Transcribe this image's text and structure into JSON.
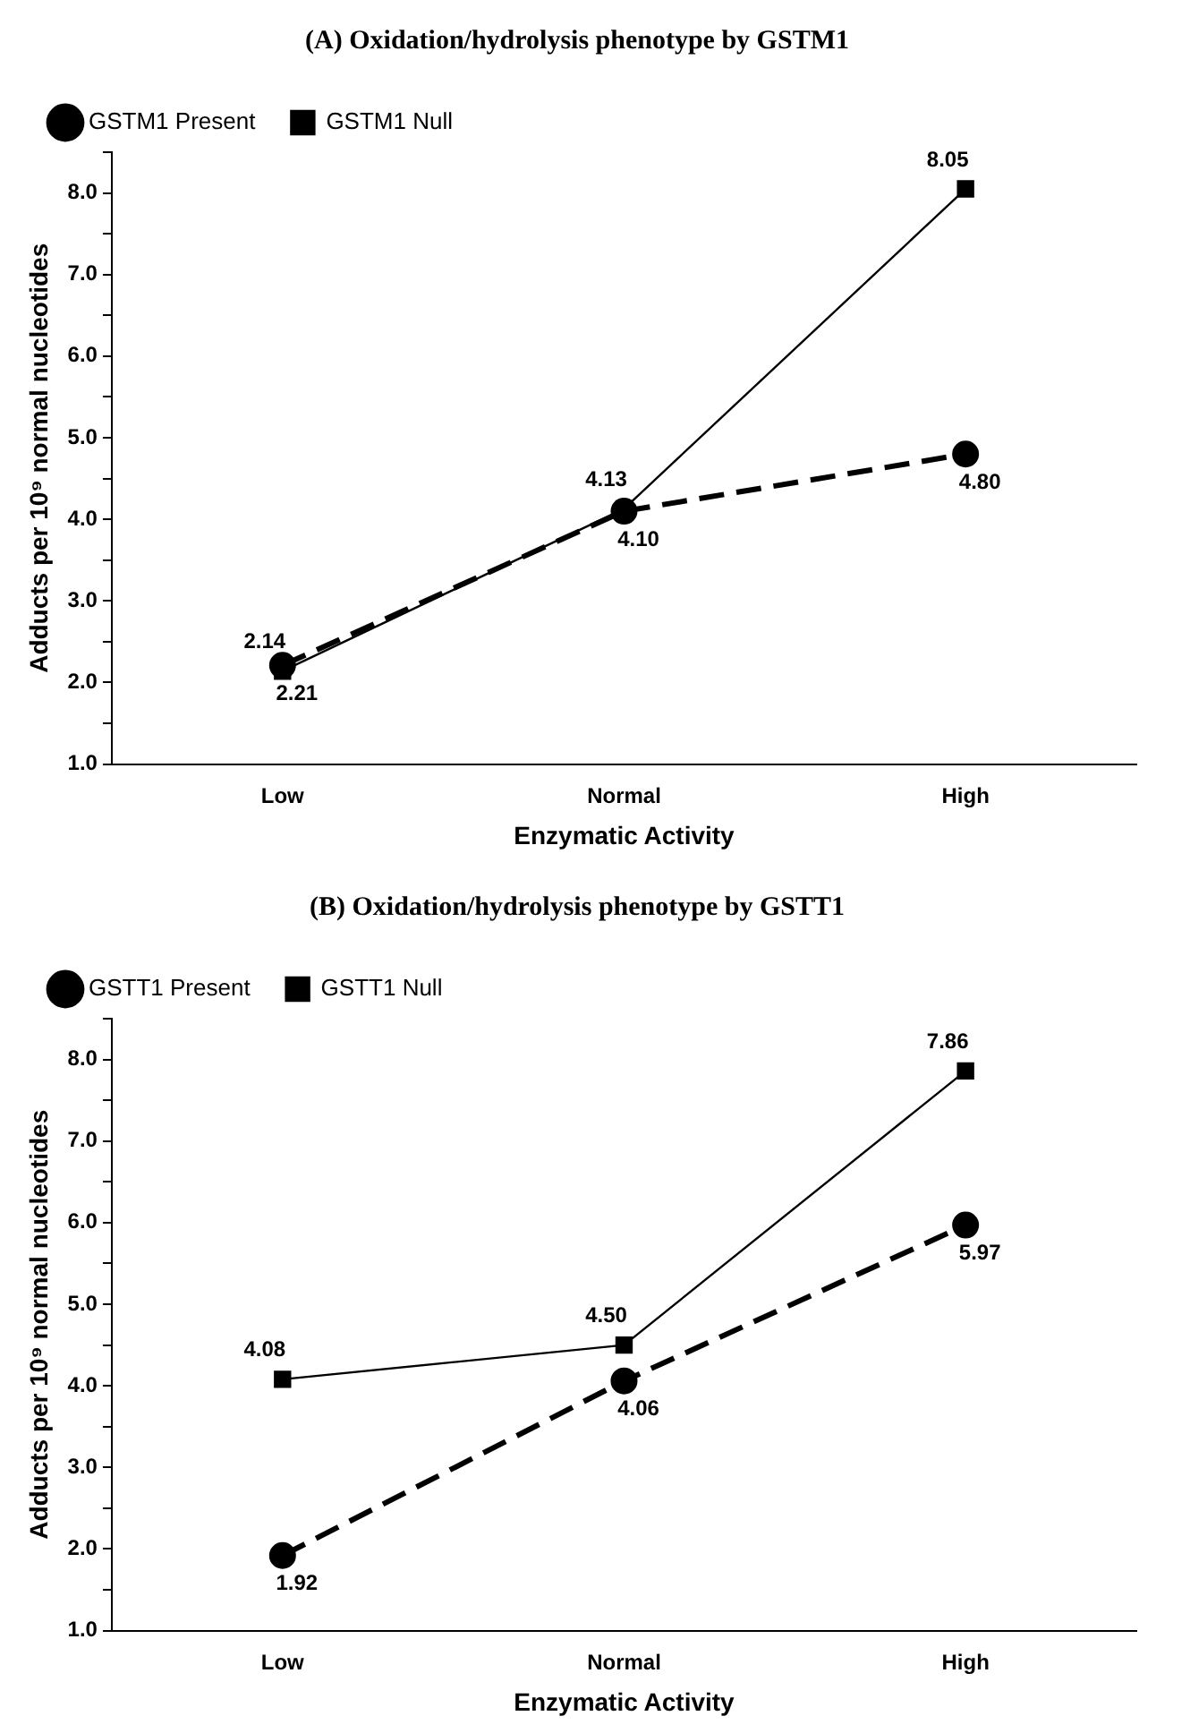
{
  "chart_data": [
    {
      "type": "line",
      "title": "(A) Oxidation/hydrolysis phenotype by GSTM1",
      "xlabel": "Enzymatic Activity",
      "ylabel": "Adducts per 10⁹ normal nucleotides",
      "categories": [
        "Low",
        "Normal",
        "High"
      ],
      "series": [
        {
          "name": "GSTM1 Present",
          "color": "#000000",
          "values": [
            2.21,
            4.1,
            4.8
          ],
          "value_labels": [
            "2.21",
            "4.10",
            "4.80"
          ],
          "marker": "circle",
          "line_style": "dashed"
        },
        {
          "name": "GSTM1 Null",
          "color": "#000000",
          "values": [
            2.14,
            4.13,
            8.05
          ],
          "value_labels": [
            "2.14",
            "4.13",
            "8.05"
          ],
          "marker": "square",
          "line_style": "solid"
        }
      ],
      "ylim": [
        1,
        8.5
      ],
      "yticks": [
        {
          "value": 1,
          "label": "1.0"
        },
        {
          "value": 1.5,
          "label": null
        },
        {
          "value": 2,
          "label": "2.0"
        },
        {
          "value": 2.5,
          "label": null
        },
        {
          "value": 3,
          "label": "3.0"
        },
        {
          "value": 3.5,
          "label": null
        },
        {
          "value": 4,
          "label": "4.0"
        },
        {
          "value": 4.5,
          "label": null
        },
        {
          "value": 5,
          "label": "5.0"
        },
        {
          "value": 5.5,
          "label": null
        },
        {
          "value": 6,
          "label": "6.0"
        },
        {
          "value": 6.5,
          "label": null
        },
        {
          "value": 7,
          "label": "7.0"
        },
        {
          "value": 7.5,
          "label": null
        },
        {
          "value": 8,
          "label": "8.0"
        },
        {
          "value": 8.5,
          "label": null
        }
      ],
      "legend": "top left"
    },
    {
      "type": "line",
      "title": "(B) Oxidation/hydrolysis phenotype by GSTT1",
      "xlabel": "Enzymatic Activity",
      "ylabel": "Adducts per 10⁹ normal nucleotides",
      "categories": [
        "Low",
        "Normal",
        "High"
      ],
      "series": [
        {
          "name": "GSTT1 Present",
          "color": "#000000",
          "values": [
            1.92,
            4.06,
            5.97
          ],
          "value_labels": [
            "1.92",
            "4.06",
            "5.97"
          ],
          "marker": "circle",
          "line_style": "dashed"
        },
        {
          "name": "GSTT1 Null",
          "color": "#000000",
          "values": [
            4.08,
            4.5,
            7.86
          ],
          "value_labels": [
            "4.08",
            "4.50",
            "7.86"
          ],
          "marker": "square",
          "line_style": "solid"
        }
      ],
      "ylim": [
        1,
        8.5
      ],
      "yticks": [
        {
          "value": 1,
          "label": "1.0"
        },
        {
          "value": 1.5,
          "label": null
        },
        {
          "value": 2,
          "label": "2.0"
        },
        {
          "value": 2.5,
          "label": null
        },
        {
          "value": 3,
          "label": "3.0"
        },
        {
          "value": 3.5,
          "label": null
        },
        {
          "value": 4,
          "label": "4.0"
        },
        {
          "value": 4.5,
          "label": null
        },
        {
          "value": 5,
          "label": "5.0"
        },
        {
          "value": 5.5,
          "label": null
        },
        {
          "value": 6,
          "label": "6.0"
        },
        {
          "value": 6.5,
          "label": null
        },
        {
          "value": 7,
          "label": "7.0"
        },
        {
          "value": 7.5,
          "label": null
        },
        {
          "value": 8,
          "label": "8.0"
        },
        {
          "value": 8.5,
          "label": null
        }
      ],
      "legend": "top left"
    }
  ]
}
